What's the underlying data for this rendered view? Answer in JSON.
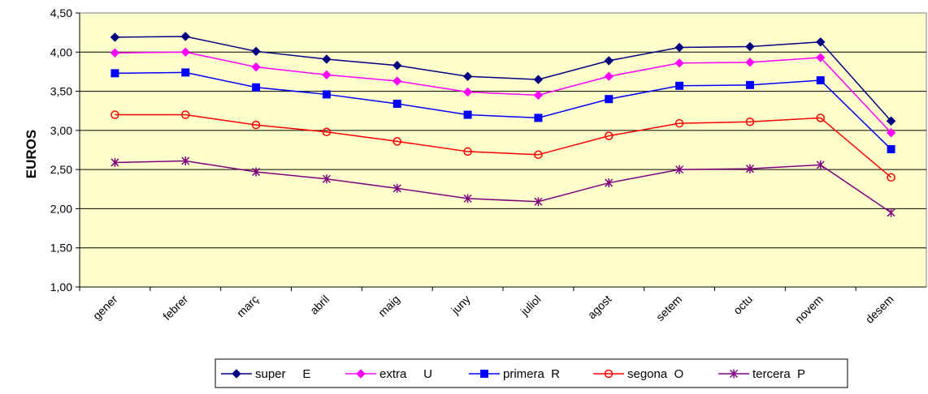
{
  "chart_data": {
    "type": "line",
    "title": "",
    "xlabel": "",
    "ylabel": "EUROS",
    "ylim": [
      1.0,
      4.5
    ],
    "yticks": [
      "1,00",
      "1,50",
      "2,00",
      "2,50",
      "3,00",
      "3,50",
      "4,00",
      "4,50"
    ],
    "grid": "horizontal",
    "legend": "bottom",
    "plot_background": "#FFFFCC",
    "categories": [
      "gener",
      "febrer",
      "març",
      "abril",
      "maig",
      "juny",
      "juliol",
      "agost",
      "setem",
      "octu",
      "novem",
      "desem"
    ],
    "series": [
      {
        "name": "super     E",
        "color": "#000080",
        "marker": "diamond",
        "values": [
          4.19,
          4.2,
          4.01,
          3.91,
          3.83,
          3.69,
          3.65,
          3.89,
          4.06,
          4.07,
          4.13,
          3.12
        ]
      },
      {
        "name": "extra     U",
        "color": "#FF00FF",
        "marker": "diamond",
        "values": [
          3.99,
          4.0,
          3.81,
          3.71,
          3.63,
          3.49,
          3.45,
          3.69,
          3.86,
          3.87,
          3.93,
          2.97
        ]
      },
      {
        "name": "primera  R",
        "color": "#0000FF",
        "marker": "square",
        "values": [
          3.73,
          3.74,
          3.55,
          3.46,
          3.34,
          3.2,
          3.16,
          3.4,
          3.57,
          3.58,
          3.64,
          2.76
        ]
      },
      {
        "name": "segona  O",
        "color": "#FF0000",
        "marker": "circle",
        "values": [
          3.2,
          3.2,
          3.07,
          2.98,
          2.86,
          2.73,
          2.69,
          2.93,
          3.09,
          3.11,
          3.16,
          2.4
        ]
      },
      {
        "name": "tercera  P",
        "color": "#800080",
        "marker": "star",
        "values": [
          2.59,
          2.61,
          2.47,
          2.38,
          2.26,
          2.13,
          2.09,
          2.33,
          2.5,
          2.51,
          2.56,
          1.95
        ]
      }
    ]
  }
}
